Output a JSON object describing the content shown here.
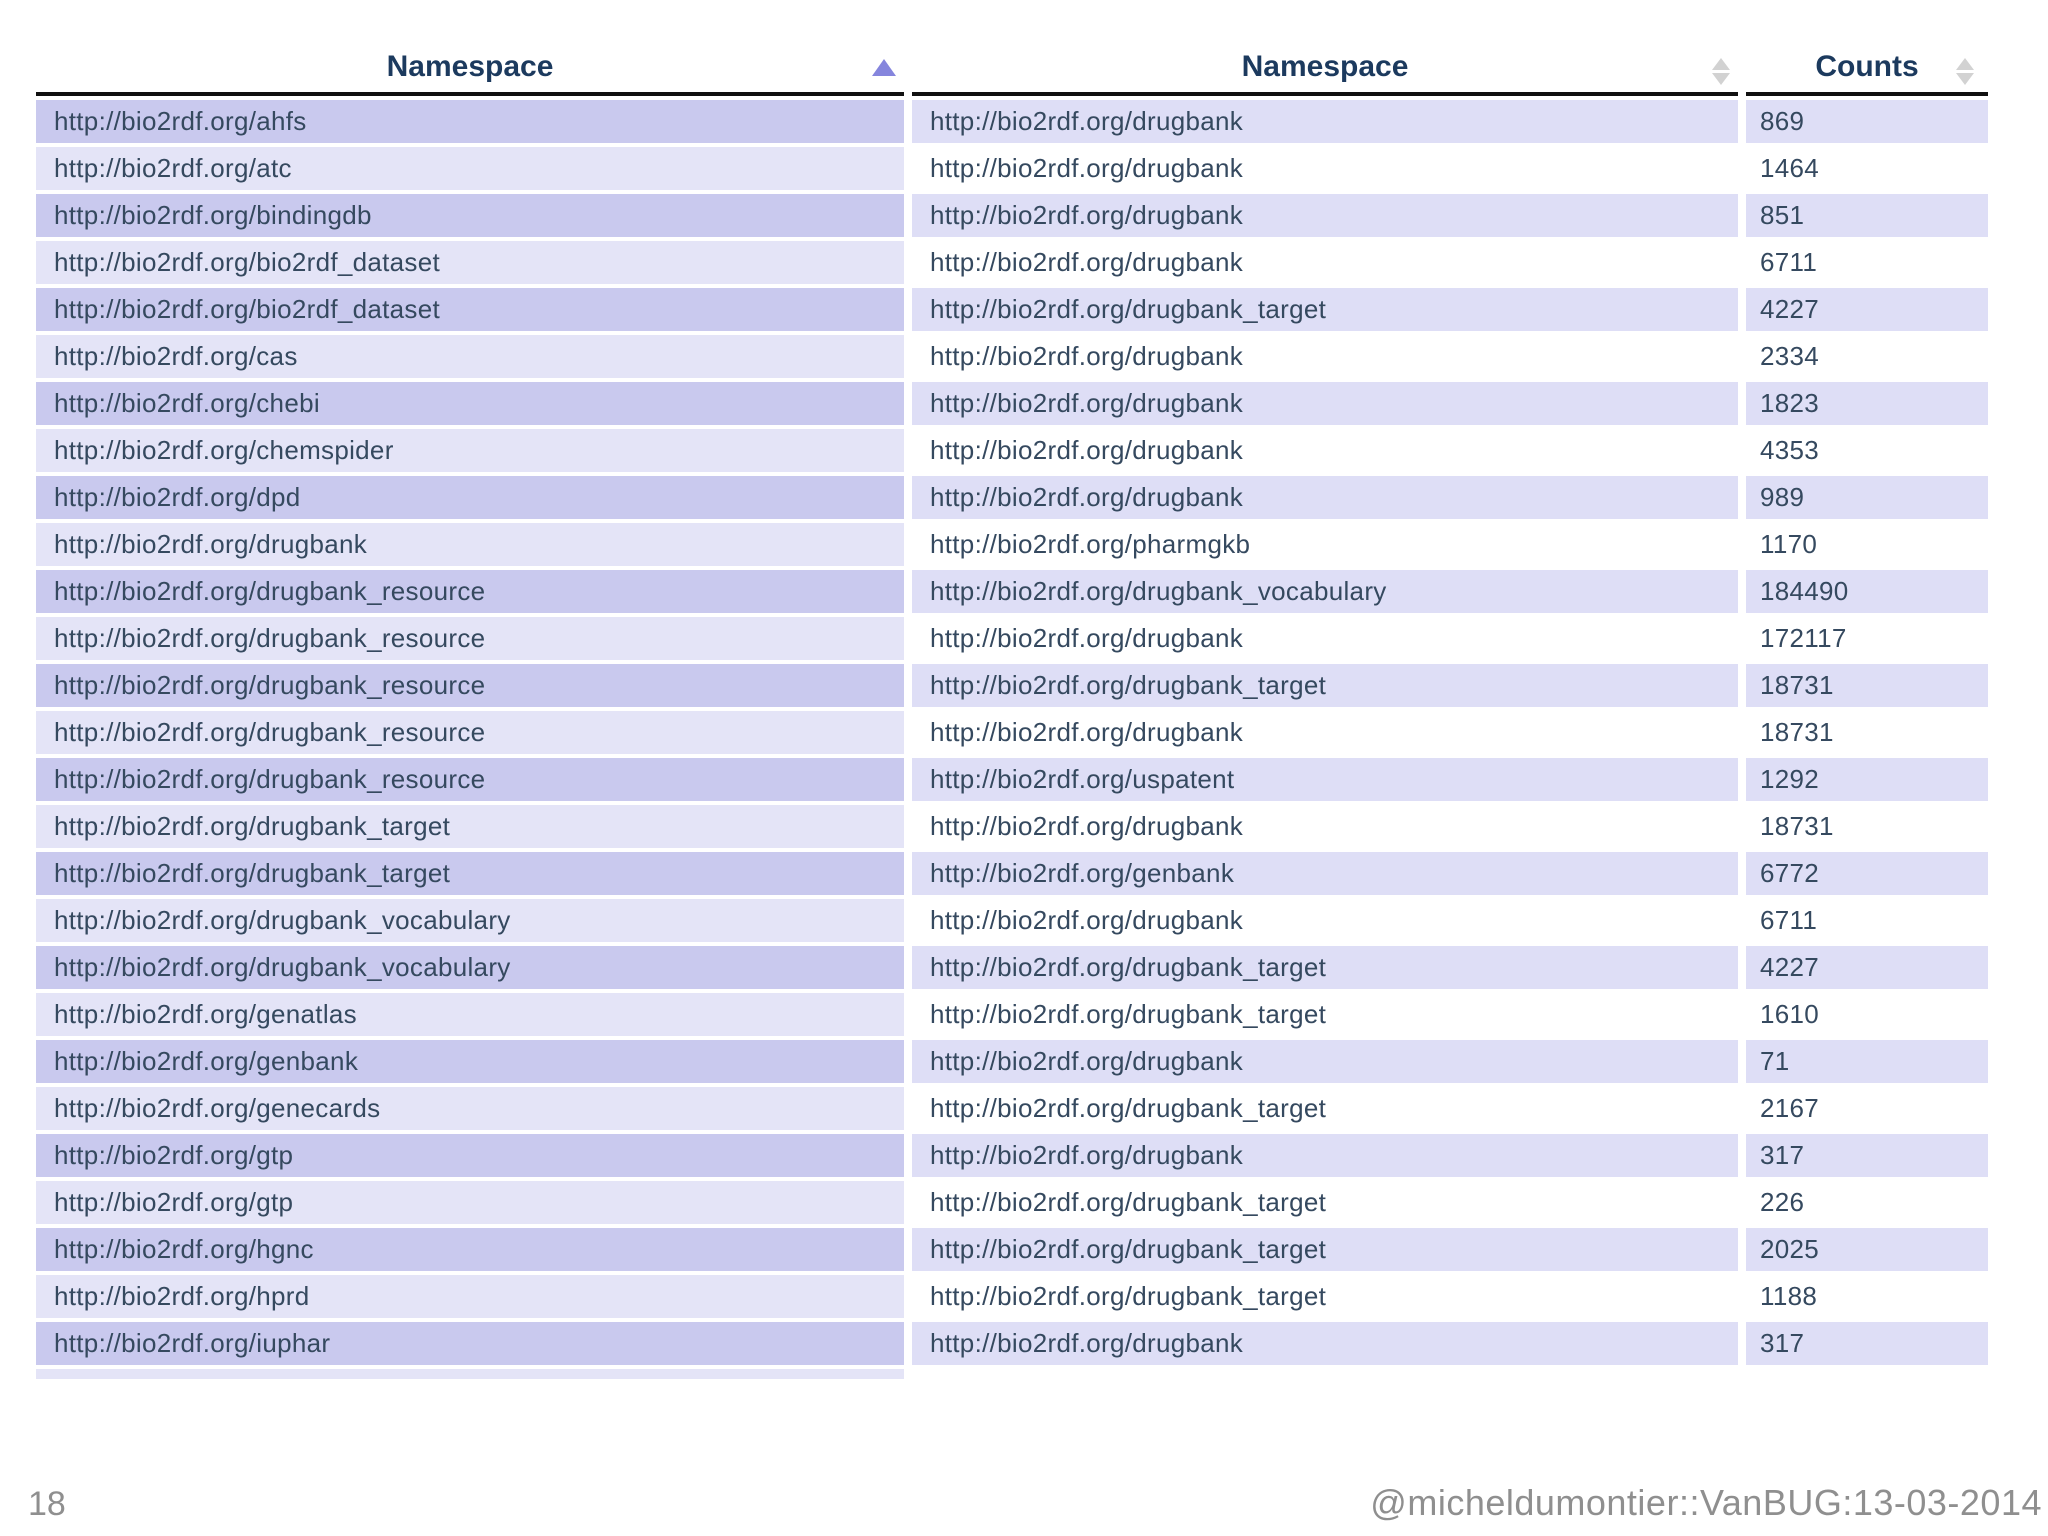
{
  "table": {
    "headers": [
      {
        "label": "Namespace",
        "sort": "ascending"
      },
      {
        "label": "Namespace",
        "sort": "none"
      },
      {
        "label": "Counts",
        "sort": "none"
      }
    ],
    "rows": [
      {
        "namespace_left": "http://bio2rdf.org/ahfs",
        "namespace_right": "http://bio2rdf.org/drugbank",
        "count": "869"
      },
      {
        "namespace_left": "http://bio2rdf.org/atc",
        "namespace_right": "http://bio2rdf.org/drugbank",
        "count": "1464"
      },
      {
        "namespace_left": "http://bio2rdf.org/bindingdb",
        "namespace_right": "http://bio2rdf.org/drugbank",
        "count": "851"
      },
      {
        "namespace_left": "http://bio2rdf.org/bio2rdf_dataset",
        "namespace_right": "http://bio2rdf.org/drugbank",
        "count": "6711"
      },
      {
        "namespace_left": "http://bio2rdf.org/bio2rdf_dataset",
        "namespace_right": "http://bio2rdf.org/drugbank_target",
        "count": "4227"
      },
      {
        "namespace_left": "http://bio2rdf.org/cas",
        "namespace_right": "http://bio2rdf.org/drugbank",
        "count": "2334"
      },
      {
        "namespace_left": "http://bio2rdf.org/chebi",
        "namespace_right": "http://bio2rdf.org/drugbank",
        "count": "1823"
      },
      {
        "namespace_left": "http://bio2rdf.org/chemspider",
        "namespace_right": "http://bio2rdf.org/drugbank",
        "count": "4353"
      },
      {
        "namespace_left": "http://bio2rdf.org/dpd",
        "namespace_right": "http://bio2rdf.org/drugbank",
        "count": "989"
      },
      {
        "namespace_left": "http://bio2rdf.org/drugbank",
        "namespace_right": "http://bio2rdf.org/pharmgkb",
        "count": "1170"
      },
      {
        "namespace_left": "http://bio2rdf.org/drugbank_resource",
        "namespace_right": "http://bio2rdf.org/drugbank_vocabulary",
        "count": "184490"
      },
      {
        "namespace_left": "http://bio2rdf.org/drugbank_resource",
        "namespace_right": "http://bio2rdf.org/drugbank",
        "count": "172117"
      },
      {
        "namespace_left": "http://bio2rdf.org/drugbank_resource",
        "namespace_right": "http://bio2rdf.org/drugbank_target",
        "count": "18731"
      },
      {
        "namespace_left": "http://bio2rdf.org/drugbank_resource",
        "namespace_right": "http://bio2rdf.org/drugbank",
        "count": "18731"
      },
      {
        "namespace_left": "http://bio2rdf.org/drugbank_resource",
        "namespace_right": "http://bio2rdf.org/uspatent",
        "count": "1292"
      },
      {
        "namespace_left": "http://bio2rdf.org/drugbank_target",
        "namespace_right": "http://bio2rdf.org/drugbank",
        "count": "18731"
      },
      {
        "namespace_left": "http://bio2rdf.org/drugbank_target",
        "namespace_right": "http://bio2rdf.org/genbank",
        "count": "6772"
      },
      {
        "namespace_left": "http://bio2rdf.org/drugbank_vocabulary",
        "namespace_right": "http://bio2rdf.org/drugbank",
        "count": "6711"
      },
      {
        "namespace_left": "http://bio2rdf.org/drugbank_vocabulary",
        "namespace_right": "http://bio2rdf.org/drugbank_target",
        "count": "4227"
      },
      {
        "namespace_left": "http://bio2rdf.org/genatlas",
        "namespace_right": "http://bio2rdf.org/drugbank_target",
        "count": "1610"
      },
      {
        "namespace_left": "http://bio2rdf.org/genbank",
        "namespace_right": "http://bio2rdf.org/drugbank",
        "count": "71"
      },
      {
        "namespace_left": "http://bio2rdf.org/genecards",
        "namespace_right": "http://bio2rdf.org/drugbank_target",
        "count": "2167"
      },
      {
        "namespace_left": "http://bio2rdf.org/gtp",
        "namespace_right": "http://bio2rdf.org/drugbank",
        "count": "317"
      },
      {
        "namespace_left": "http://bio2rdf.org/gtp",
        "namespace_right": "http://bio2rdf.org/drugbank_target",
        "count": "226"
      },
      {
        "namespace_left": "http://bio2rdf.org/hgnc",
        "namespace_right": "http://bio2rdf.org/drugbank_target",
        "count": "2025"
      },
      {
        "namespace_left": "http://bio2rdf.org/hprd",
        "namespace_right": "http://bio2rdf.org/drugbank_target",
        "count": "1188"
      },
      {
        "namespace_left": "http://bio2rdf.org/iuphar",
        "namespace_right": "http://bio2rdf.org/drugbank",
        "count": "317"
      }
    ]
  },
  "footer": {
    "page_number": "18",
    "credit": "@micheldumontier::VanBUG:13-03-2014"
  },
  "colors": {
    "sorted_column_odd": "#c9c9ee",
    "sorted_column_even": "#e4e4f7",
    "stripe_odd": "#dedef6",
    "stripe_even": "#ffffff",
    "header_text": "#1c3a5e",
    "cell_text": "#35495f",
    "sort_active_icon": "#8585dd",
    "sort_inactive_icon": "#d2d2d2",
    "footer_text": "#8f8f8f",
    "header_rule": "#101010"
  }
}
